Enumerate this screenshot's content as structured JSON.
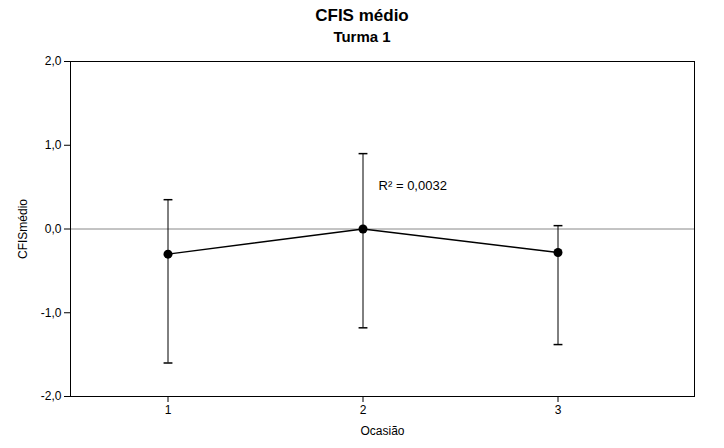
{
  "chart_data": {
    "type": "line",
    "title": "CFIS médio",
    "subtitle": "Turma 1",
    "xlabel": "Ocasião",
    "ylabel": "CFISmédio",
    "x": [
      1,
      2,
      3
    ],
    "values": [
      -0.3,
      0.0,
      -0.28
    ],
    "yerr_upper": [
      0.65,
      0.9,
      0.32
    ],
    "yerr_lower": [
      1.3,
      1.18,
      1.1
    ],
    "xlim": [
      0.5,
      3.7
    ],
    "xticks": [
      1,
      2,
      3
    ],
    "ylim": [
      -2.0,
      2.0
    ],
    "yticks": [
      {
        "value": -2.0,
        "label": "-2,0"
      },
      {
        "value": -1.0,
        "label": "-1,0"
      },
      {
        "value": 0.0,
        "label": "0,0"
      },
      {
        "value": 1.0,
        "label": "1,0"
      },
      {
        "value": 2.0,
        "label": "2,0"
      }
    ],
    "annotations": [
      {
        "text": "R² = 0,0032",
        "x": 2.08,
        "y": 0.52
      }
    ],
    "reference_line": 0,
    "marker": "circle",
    "grid": false
  }
}
